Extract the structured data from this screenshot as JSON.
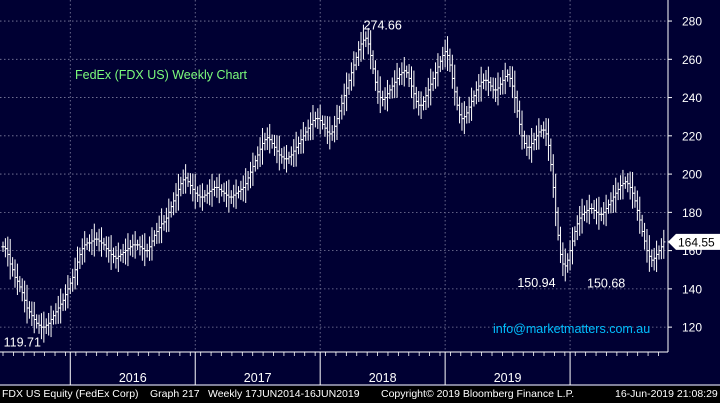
{
  "chart_data": {
    "type": "ohlc",
    "title": "FedEx (FDX US) Weekly Chart",
    "watermark": "info@marketmatters.com.au",
    "x_labels": [
      "2016",
      "2017",
      "2018",
      "2019"
    ],
    "y_ticks": [
      120,
      140,
      160,
      180,
      200,
      220,
      240,
      260,
      280
    ],
    "ylim": [
      107,
      291
    ],
    "last_price_label": "164.55",
    "annotations": [
      {
        "text": "274.66",
        "value": 274.66,
        "week": 168
      },
      {
        "text": "119.71",
        "value": 119.71,
        "week": 18
      },
      {
        "text": "150.94",
        "value": 150.94,
        "week": 232
      },
      {
        "text": "150.68",
        "value": 150.68,
        "week": 261
      }
    ],
    "colors": {
      "background": "#000033",
      "bars": "#ffffff",
      "grid": "#8080a0",
      "title": "#7CFC7C",
      "watermark": "#00BFFF"
    },
    "grid": true,
    "weekly_close": [
      162,
      161,
      158,
      153,
      150,
      146,
      144,
      141,
      138,
      134,
      130,
      128,
      126,
      124,
      122,
      121,
      120,
      120,
      121,
      122,
      124,
      126,
      128,
      130,
      132,
      134,
      137,
      140,
      143,
      146,
      150,
      154,
      158,
      161,
      163,
      164,
      164,
      165,
      166,
      166,
      165,
      164,
      163,
      161,
      160,
      158,
      157,
      156,
      157,
      158,
      159,
      160,
      161,
      162,
      163,
      163,
      163,
      162,
      161,
      160,
      160,
      162,
      165,
      168,
      170,
      172,
      174,
      175,
      177,
      180,
      183,
      186,
      189,
      192,
      195,
      197,
      198,
      196,
      194,
      192,
      190,
      189,
      188,
      188,
      189,
      190,
      191,
      192,
      193,
      193,
      192,
      191,
      190,
      189,
      188,
      188,
      189,
      190,
      191,
      192,
      193,
      195,
      198,
      201,
      204,
      207,
      210,
      213,
      216,
      218,
      219,
      218,
      216,
      214,
      212,
      210,
      209,
      208,
      208,
      209,
      210,
      212,
      214,
      216,
      218,
      220,
      222,
      224,
      226,
      228,
      229,
      229,
      228,
      226,
      224,
      222,
      221,
      222,
      225,
      229,
      233,
      237,
      241,
      245,
      249,
      253,
      257,
      261,
      265,
      268,
      270,
      271,
      268,
      262,
      255,
      248,
      243,
      240,
      239,
      240,
      242,
      244,
      246,
      248,
      250,
      252,
      253,
      254,
      253,
      250,
      246,
      242,
      238,
      236,
      236,
      238,
      241,
      244,
      247,
      250,
      253,
      256,
      259,
      262,
      264,
      262,
      257,
      250,
      243,
      236,
      231,
      229,
      230,
      232,
      235,
      238,
      241,
      244,
      246,
      248,
      249,
      249,
      248,
      246,
      244,
      244,
      245,
      247,
      249,
      251,
      252,
      250,
      246,
      240,
      233,
      226,
      220,
      216,
      214,
      214,
      216,
      218,
      220,
      222,
      223,
      223,
      221,
      215,
      205,
      193,
      180,
      168,
      158,
      153,
      152,
      155,
      160,
      165,
      170,
      174,
      177,
      179,
      180,
      181,
      182,
      182,
      181,
      180,
      179,
      179,
      180,
      182,
      184,
      186,
      188,
      190,
      192,
      194,
      195,
      196,
      195,
      193,
      190,
      186,
      181,
      176,
      170,
      165,
      160,
      157,
      155,
      156,
      158,
      160,
      162,
      164.55
    ]
  },
  "footer": {
    "left": "FDX US Equity (FedEx Corp)",
    "graph": "Graph 217",
    "range": "Weekly 17JUN2014-16JUN2019",
    "copyright": "Copyright© 2019 Bloomberg Finance L.P.",
    "timestamp": "16-Jun-2019 21:08:29"
  }
}
